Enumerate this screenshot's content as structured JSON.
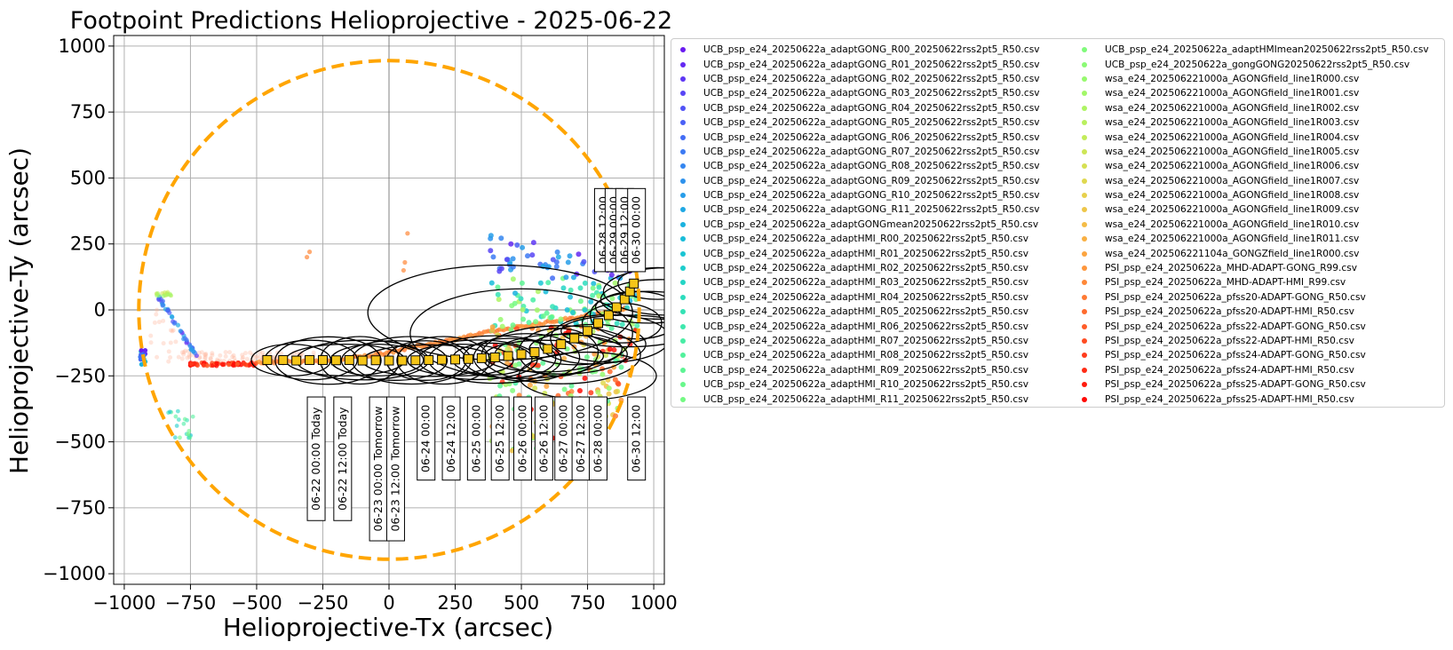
{
  "chart_data": {
    "type": "scatter",
    "title": "Footpoint Predictions Helioprojective - 2025-06-22",
    "xlabel": "Helioprojective-Tx (arcsec)",
    "ylabel": "Helioprojective-Ty (arcsec)",
    "xlim": [
      -1040,
      1040
    ],
    "ylim": [
      -1040,
      1040
    ],
    "x_ticks": [
      -1000,
      -750,
      -500,
      -250,
      0,
      250,
      500,
      750,
      1000
    ],
    "y_ticks": [
      1000,
      750,
      500,
      250,
      0,
      -250,
      -500,
      -750,
      -1000
    ],
    "x_tick_labels": [
      "−1000",
      "−750",
      "−500",
      "−250",
      "0",
      "250",
      "500",
      "750",
      "1000"
    ],
    "y_tick_labels": [
      "1000",
      "750",
      "500",
      "250",
      "0",
      "−250",
      "−500",
      "−750",
      "−1000"
    ],
    "grid": true,
    "legend_placement": "outside-right",
    "limb_radius_arcsec": 945,
    "limb_color": "#FFA500",
    "spacecraft_marker_color": "#F5C518",
    "legend": [
      {
        "label": "UCB_psp_e24_20250622a_adaptGONG_R00_20250622rss2pt5_R50.csv",
        "color": "#6A1BF0"
      },
      {
        "label": "UCB_psp_e24_20250622a_adaptGONG_R01_20250622rss2pt5_R50.csv",
        "color": "#6429F2"
      },
      {
        "label": "UCB_psp_e24_20250622a_adaptGONG_R02_20250622rss2pt5_R50.csv",
        "color": "#5E37F4"
      },
      {
        "label": "UCB_psp_e24_20250622a_adaptGONG_R03_20250622rss2pt5_R50.csv",
        "color": "#5845F5"
      },
      {
        "label": "UCB_psp_e24_20250622a_adaptGONG_R04_20250622rss2pt5_R50.csv",
        "color": "#5153F6"
      },
      {
        "label": "UCB_psp_e24_20250622a_adaptGONG_R05_20250622rss2pt5_R50.csv",
        "color": "#4A60F6"
      },
      {
        "label": "UCB_psp_e24_20250622a_adaptGONG_R06_20250622rss2pt5_R50.csv",
        "color": "#436DF5"
      },
      {
        "label": "UCB_psp_e24_20250622a_adaptGONG_R07_20250622rss2pt5_R50.csv",
        "color": "#3C7AF3"
      },
      {
        "label": "UCB_psp_e24_20250622a_adaptGONG_R08_20250622rss2pt5_R50.csv",
        "color": "#3586F0"
      },
      {
        "label": "UCB_psp_e24_20250622a_adaptGONG_R09_20250622rss2pt5_R50.csv",
        "color": "#2E92ED"
      },
      {
        "label": "UCB_psp_e24_20250622a_adaptGONG_R10_20250622rss2pt5_R50.csv",
        "color": "#279DE9"
      },
      {
        "label": "UCB_psp_e24_20250622a_adaptGONG_R11_20250622rss2pt5_R50.csv",
        "color": "#20A8E4"
      },
      {
        "label": "UCB_psp_e24_20250622a_adaptGONGmean20250622rss2pt5_R50.csv",
        "color": "#1AB2DF"
      },
      {
        "label": "UCB_psp_e24_20250622a_adaptHMI_R00_20250622rss2pt5_R50.csv",
        "color": "#18BCD9"
      },
      {
        "label": "UCB_psp_e24_20250622a_adaptHMI_R01_20250622rss2pt5_R50.csv",
        "color": "#1AC5D3"
      },
      {
        "label": "UCB_psp_e24_20250622a_adaptHMI_R02_20250622rss2pt5_R50.csv",
        "color": "#1ECDCC"
      },
      {
        "label": "UCB_psp_e24_20250622a_adaptHMI_R03_20250622rss2pt5_R50.csv",
        "color": "#24D5C5"
      },
      {
        "label": "UCB_psp_e24_20250622a_adaptHMI_R04_20250622rss2pt5_R50.csv",
        "color": "#2CDCBD"
      },
      {
        "label": "UCB_psp_e24_20250622a_adaptHMI_R05_20250622rss2pt5_R50.csv",
        "color": "#34E2B5"
      },
      {
        "label": "UCB_psp_e24_20250622a_adaptHMI_R06_20250622rss2pt5_R50.csv",
        "color": "#3EE8AD"
      },
      {
        "label": "UCB_psp_e24_20250622a_adaptHMI_R07_20250622rss2pt5_R50.csv",
        "color": "#48EDA5"
      },
      {
        "label": "UCB_psp_e24_20250622a_adaptHMI_R08_20250622rss2pt5_R50.csv",
        "color": "#52F19C"
      },
      {
        "label": "UCB_psp_e24_20250622a_adaptHMI_R09_20250622rss2pt5_R50.csv",
        "color": "#5DF494"
      },
      {
        "label": "UCB_psp_e24_20250622a_adaptHMI_R10_20250622rss2pt5_R50.csv",
        "color": "#68F78B"
      },
      {
        "label": "UCB_psp_e24_20250622a_adaptHMI_R11_20250622rss2pt5_R50.csv",
        "color": "#74F983"
      },
      {
        "label": "UCB_psp_e24_20250622a_adaptHMImean20250622rss2pt5_R50.csv",
        "color": "#80FA7B"
      },
      {
        "label": "UCB_psp_e24_20250622a_gongGONG20250622rss2pt5_R50.csv",
        "color": "#8BFA75"
      },
      {
        "label": "wsa_e24_202506221000a_AGONGfield_line1R000.csv",
        "color": "#97F96E"
      },
      {
        "label": "wsa_e24_202506221000a_AGONGfield_line1R001.csv",
        "color": "#A2F768"
      },
      {
        "label": "wsa_e24_202506221000a_AGONGfield_line1R002.csv",
        "color": "#AEF463"
      },
      {
        "label": "wsa_e24_202506221000a_AGONGfield_line1R003.csv",
        "color": "#B9F05E"
      },
      {
        "label": "wsa_e24_202506221000a_AGONGfield_line1R004.csv",
        "color": "#C3EC5A"
      },
      {
        "label": "wsa_e24_202506221000a_AGONGfield_line1R005.csv",
        "color": "#CDE656"
      },
      {
        "label": "wsa_e24_202506221000a_AGONGfield_line1R006.csv",
        "color": "#D6E052"
      },
      {
        "label": "wsa_e24_202506221000a_AGONGfield_line1R007.csv",
        "color": "#DFD84F"
      },
      {
        "label": "wsa_e24_202506221000a_AGONGfield_line1R008.csv",
        "color": "#E7D04C"
      },
      {
        "label": "wsa_e24_202506221000a_AGONGfield_line1R009.csv",
        "color": "#EEC649"
      },
      {
        "label": "wsa_e24_202506221000a_AGONGfield_line1R010.csv",
        "color": "#F4BC46"
      },
      {
        "label": "wsa_e24_202506221000a_AGONGfield_line1R011.csv",
        "color": "#F9B043"
      },
      {
        "label": "wsa_e24_202506221104a_GONGZfield_line1R000.csv",
        "color": "#FCA440"
      },
      {
        "label": "PSI_psp_e24_20250622a_MHD-ADAPT-GONG_R99.csv",
        "color": "#FE963C"
      },
      {
        "label": "PSI_psp_e24_20250622a_MHD-ADAPT-HMI_R99.csv",
        "color": "#FF8838"
      },
      {
        "label": "PSI_psp_e24_20250622a_pfss20-ADAPT-GONG_R50.csv",
        "color": "#FF7A33"
      },
      {
        "label": "PSI_psp_e24_20250622a_pfss20-ADAPT-HMI_R50.csv",
        "color": "#FF6B2E"
      },
      {
        "label": "PSI_psp_e24_20250622a_pfss22-ADAPT-GONG_R50.csv",
        "color": "#FF5C28"
      },
      {
        "label": "PSI_psp_e24_20250622a_pfss22-ADAPT-HMI_R50.csv",
        "color": "#FF4C22"
      },
      {
        "label": "PSI_psp_e24_20250622a_pfss24-ADAPT-GONG_R50.csv",
        "color": "#FF3C1C"
      },
      {
        "label": "PSI_psp_e24_20250622a_pfss24-ADAPT-HMI_R50.csv",
        "color": "#FF2C15"
      },
      {
        "label": "PSI_psp_e24_20250622a_pfss25-ADAPT-GONG_R50.csv",
        "color": "#FF1C0E"
      },
      {
        "label": "PSI_psp_e24_20250622a_pfss25-ADAPT-HMI_R50.csv",
        "color": "#FF0A05"
      }
    ],
    "time_labels_below": [
      {
        "text": "06-22 00:00 Today",
        "x": -275
      },
      {
        "text": "06-22 12:00 Today",
        "x": -175
      },
      {
        "text": "06-23 00:00 Tomorrow",
        "x": -40
      },
      {
        "text": "06-23 12:00 Tomorrow",
        "x": 25
      },
      {
        "text": "06-24 00:00",
        "x": 140
      },
      {
        "text": "06-24 12:00",
        "x": 235
      },
      {
        "text": "06-25 00:00",
        "x": 330
      },
      {
        "text": "06-25 12:00",
        "x": 420
      },
      {
        "text": "06-26 00:00",
        "x": 505
      },
      {
        "text": "06-26 12:00",
        "x": 585
      },
      {
        "text": "06-27 00:00",
        "x": 660
      },
      {
        "text": "06-27 12:00",
        "x": 725
      },
      {
        "text": "06-28 00:00",
        "x": 790
      },
      {
        "text": "06-30 12:00",
        "x": 935
      }
    ],
    "time_labels_above": [
      {
        "text": "06-28 12:00",
        "x": 810
      },
      {
        "text": "06-29 00:00",
        "x": 850
      },
      {
        "text": "06-29 12:00",
        "x": 890
      },
      {
        "text": "06-30 00:00",
        "x": 935
      }
    ],
    "spacecraft_track": [
      [
        -460,
        -190
      ],
      [
        -400,
        -190
      ],
      [
        -350,
        -192
      ],
      [
        -300,
        -190
      ],
      [
        -250,
        -190
      ],
      [
        -200,
        -191
      ],
      [
        -150,
        -190
      ],
      [
        -100,
        -192
      ],
      [
        -50,
        -191
      ],
      [
        0,
        -192
      ],
      [
        50,
        -192
      ],
      [
        100,
        -191
      ],
      [
        150,
        -190
      ],
      [
        200,
        -189
      ],
      [
        250,
        -188
      ],
      [
        300,
        -186
      ],
      [
        350,
        -183
      ],
      [
        400,
        -180
      ],
      [
        450,
        -175
      ],
      [
        500,
        -168
      ],
      [
        550,
        -160
      ],
      [
        600,
        -148
      ],
      [
        650,
        -130
      ],
      [
        700,
        -108
      ],
      [
        750,
        -80
      ],
      [
        790,
        -50
      ],
      [
        830,
        -20
      ],
      [
        860,
        10
      ],
      [
        890,
        40
      ],
      [
        910,
        70
      ],
      [
        925,
        100
      ]
    ],
    "psi_band_track": [
      [
        -500,
        -200
      ],
      [
        -350,
        -195
      ],
      [
        -200,
        -190
      ],
      [
        -50,
        -170
      ],
      [
        100,
        -140
      ],
      [
        250,
        -110
      ],
      [
        400,
        -80
      ],
      [
        550,
        -55
      ],
      [
        700,
        -30
      ],
      [
        820,
        -10
      ],
      [
        900,
        10
      ]
    ]
  }
}
